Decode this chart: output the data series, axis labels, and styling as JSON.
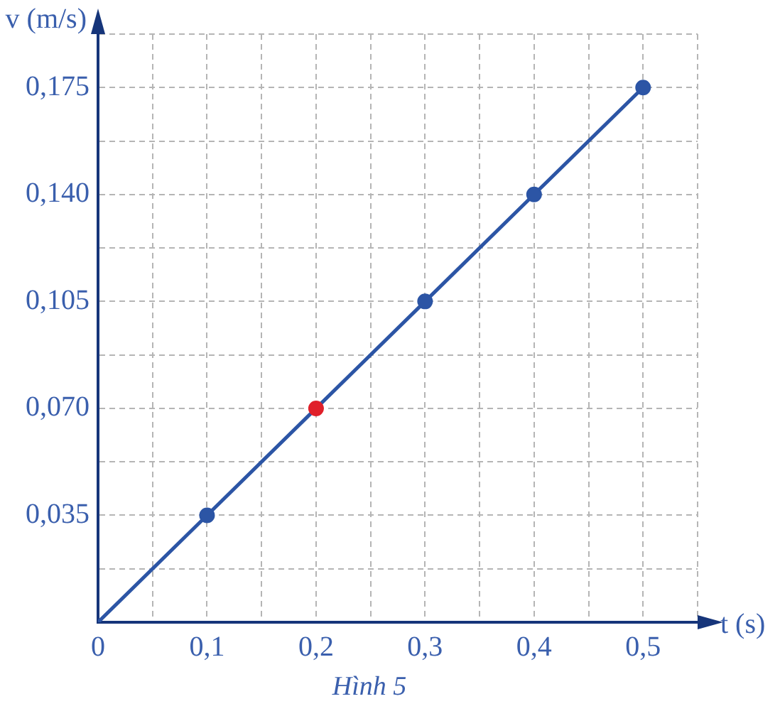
{
  "chart_data": {
    "type": "line",
    "xlabel": "t (s)",
    "ylabel": "v (m/s)",
    "annotations": [
      "Hình 5"
    ],
    "xlim": [
      0,
      0.55
    ],
    "ylim": [
      0,
      0.1925
    ],
    "xticks": [
      {
        "value": 0,
        "label": "0"
      },
      {
        "value": 0.05,
        "label": null
      },
      {
        "value": 0.1,
        "label": "0,1"
      },
      {
        "value": 0.15,
        "label": null
      },
      {
        "value": 0.2,
        "label": "0,2"
      },
      {
        "value": 0.25,
        "label": null
      },
      {
        "value": 0.3,
        "label": "0,3"
      },
      {
        "value": 0.35,
        "label": null
      },
      {
        "value": 0.4,
        "label": "0,4"
      },
      {
        "value": 0.45,
        "label": null
      },
      {
        "value": 0.5,
        "label": "0,5"
      },
      {
        "value": 0.55,
        "label": null
      }
    ],
    "yticks": [
      {
        "value": 0,
        "label": null
      },
      {
        "value": 0.0175,
        "label": null
      },
      {
        "value": 0.035,
        "label": "0,035"
      },
      {
        "value": 0.0525,
        "label": null
      },
      {
        "value": 0.07,
        "label": "0,070"
      },
      {
        "value": 0.0875,
        "label": null
      },
      {
        "value": 0.105,
        "label": "0,105"
      },
      {
        "value": 0.1225,
        "label": null
      },
      {
        "value": 0.14,
        "label": "0,140"
      },
      {
        "value": 0.1575,
        "label": null
      },
      {
        "value": 0.175,
        "label": "0,175"
      },
      {
        "value": 0.1925,
        "label": null
      }
    ],
    "grid": true,
    "series": [
      {
        "marker": "none",
        "color": "#2c55a5",
        "x": [
          0,
          0.1,
          0.2,
          0.3,
          0.4,
          0.5
        ],
        "values": [
          0,
          0.035,
          0.07,
          0.105,
          0.14,
          0.175
        ]
      },
      {
        "type": "scatter",
        "marker": "circle",
        "color": "#2c55a5",
        "colors": [
          "#2c55a5",
          "#e0202a",
          "#2c55a5",
          "#2c55a5",
          "#2c55a5"
        ],
        "x": [
          0.1,
          0.2,
          0.3,
          0.4,
          0.5
        ],
        "values": [
          0.035,
          0.07,
          0.105,
          0.14,
          0.175
        ]
      }
    ]
  }
}
